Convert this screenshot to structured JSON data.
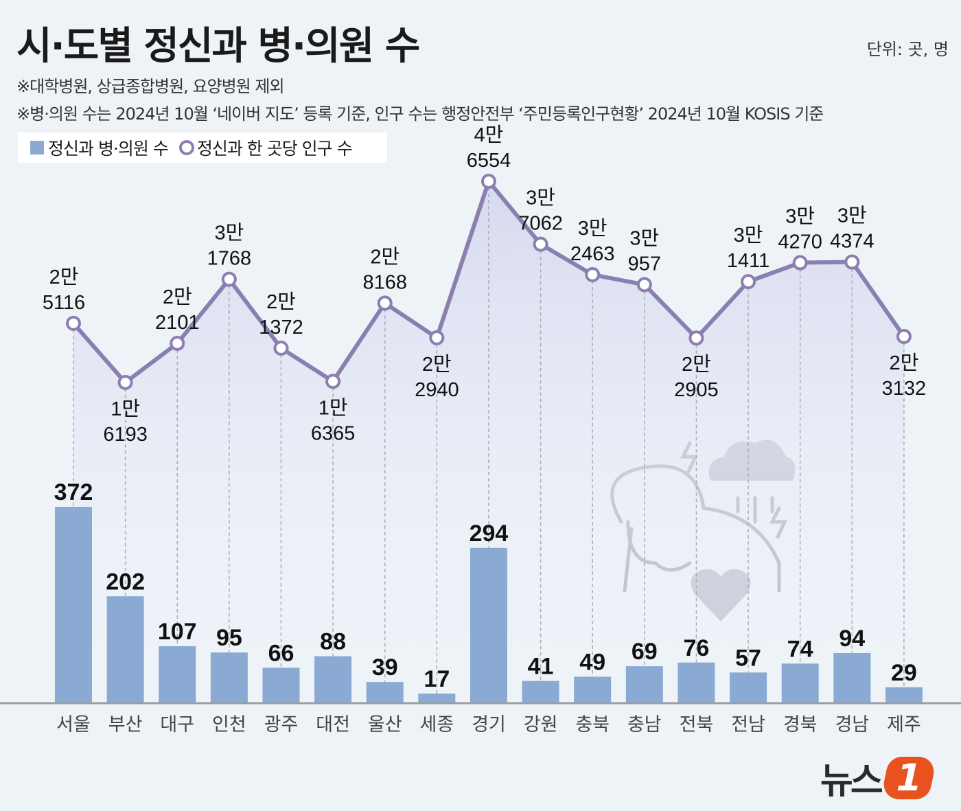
{
  "header": {
    "title": "시·도별 정신과 병·의원 수",
    "unit": "단위: 곳, 명",
    "notes": [
      "※대학병원, 상급종합병원, 요양병원 제외",
      "※병·의원 수는 2024년 10월 ‘네이버 지도’ 등록 기준, 인구 수는 행정안전부 ‘주민등록인구현황’ 2024년 10월 KOSIS 기준"
    ]
  },
  "logo": {
    "text": "뉴스",
    "mark": "1"
  },
  "chart_data": {
    "type": "bar+line",
    "title": "시·도별 정신과 병·의원 수",
    "categories": [
      "서울",
      "부산",
      "대구",
      "인천",
      "광주",
      "대전",
      "울산",
      "세종",
      "경기",
      "강원",
      "충북",
      "충남",
      "전북",
      "전남",
      "경북",
      "경남",
      "제주"
    ],
    "legend": [
      "정신과 병·의원 수",
      "정신과 한 곳당 인구 수"
    ],
    "legend_placement": "top-left",
    "series": [
      {
        "name": "정신과 병·의원 수",
        "type": "bar",
        "color": "#8aaad4",
        "values": [
          372,
          202,
          107,
          95,
          66,
          88,
          39,
          17,
          294,
          41,
          49,
          69,
          76,
          57,
          74,
          94,
          29
        ]
      },
      {
        "name": "정신과 한 곳당 인구 수",
        "type": "line",
        "color": "#8a7fb0",
        "values": [
          25116,
          16193,
          22101,
          31768,
          21372,
          16365,
          28168,
          22940,
          46554,
          37062,
          32463,
          30957,
          22905,
          31411,
          34270,
          34374,
          23132
        ],
        "labels": [
          [
            "2만",
            "5116"
          ],
          [
            "1만",
            "6193"
          ],
          [
            "2만",
            "2101"
          ],
          [
            "3만",
            "1768"
          ],
          [
            "2만",
            "1372"
          ],
          [
            "1만",
            "6365"
          ],
          [
            "2만",
            "8168"
          ],
          [
            "2만",
            "2940"
          ],
          [
            "4만",
            "6554"
          ],
          [
            "3만",
            "7062"
          ],
          [
            "3만",
            "2463"
          ],
          [
            "3만",
            "957"
          ],
          [
            "2만",
            "2905"
          ],
          [
            "3만",
            "1411"
          ],
          [
            "3만",
            "4270"
          ],
          [
            "3만",
            "4374"
          ],
          [
            "2만",
            "3132"
          ]
        ],
        "label_below": [
          false,
          true,
          false,
          false,
          false,
          true,
          false,
          true,
          false,
          false,
          false,
          false,
          true,
          false,
          false,
          false,
          true
        ]
      }
    ]
  }
}
